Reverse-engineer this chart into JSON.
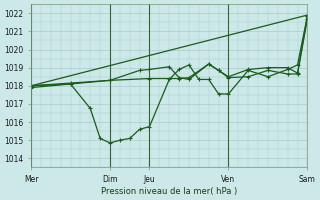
{
  "xlabel": "Pression niveau de la mer( hPa )",
  "ylim": [
    1013.5,
    1022.5
  ],
  "yticks": [
    1014,
    1015,
    1016,
    1017,
    1018,
    1019,
    1020,
    1021,
    1022
  ],
  "bg_color": "#cce8e8",
  "grid_color": "#aacccc",
  "line_color": "#1a5c1a",
  "vline_color": "#336633",
  "xtick_labels": [
    "Mer",
    "Dim",
    "Jeu",
    "Ven",
    "Sam"
  ],
  "xtick_positions": [
    0,
    48,
    72,
    120,
    168
  ],
  "vlines": [
    0,
    48,
    72,
    120,
    168
  ],
  "series_straight": [
    [
      0,
      1018.0
    ],
    [
      168,
      1021.9
    ]
  ],
  "series_low": [
    [
      0,
      1017.9
    ],
    [
      24,
      1018.1
    ],
    [
      36,
      1016.75
    ],
    [
      42,
      1015.1
    ],
    [
      48,
      1014.85
    ],
    [
      54,
      1015.0
    ],
    [
      60,
      1015.1
    ],
    [
      66,
      1015.6
    ],
    [
      72,
      1015.75
    ],
    [
      84,
      1018.35
    ],
    [
      90,
      1018.9
    ],
    [
      96,
      1019.15
    ],
    [
      102,
      1018.35
    ],
    [
      108,
      1018.35
    ],
    [
      114,
      1017.55
    ],
    [
      120,
      1017.55
    ],
    [
      132,
      1018.85
    ],
    [
      144,
      1018.5
    ],
    [
      156,
      1018.9
    ],
    [
      162,
      1019.15
    ],
    [
      168,
      1021.85
    ]
  ],
  "series_mid": [
    [
      0,
      1018.0
    ],
    [
      24,
      1018.1
    ],
    [
      48,
      1018.3
    ],
    [
      66,
      1018.85
    ],
    [
      72,
      1018.9
    ],
    [
      84,
      1019.05
    ],
    [
      90,
      1018.45
    ],
    [
      96,
      1018.35
    ],
    [
      108,
      1019.2
    ],
    [
      114,
      1018.85
    ],
    [
      120,
      1018.45
    ],
    [
      132,
      1018.5
    ],
    [
      144,
      1018.85
    ],
    [
      156,
      1018.65
    ],
    [
      162,
      1018.65
    ],
    [
      168,
      1021.7
    ]
  ],
  "series_upper": [
    [
      0,
      1018.0
    ],
    [
      24,
      1018.15
    ],
    [
      48,
      1018.3
    ],
    [
      72,
      1018.4
    ],
    [
      90,
      1018.4
    ],
    [
      96,
      1018.45
    ],
    [
      108,
      1019.2
    ],
    [
      114,
      1018.85
    ],
    [
      120,
      1018.5
    ],
    [
      132,
      1018.9
    ],
    [
      144,
      1019.0
    ],
    [
      156,
      1019.0
    ],
    [
      162,
      1018.7
    ],
    [
      168,
      1021.85
    ]
  ]
}
